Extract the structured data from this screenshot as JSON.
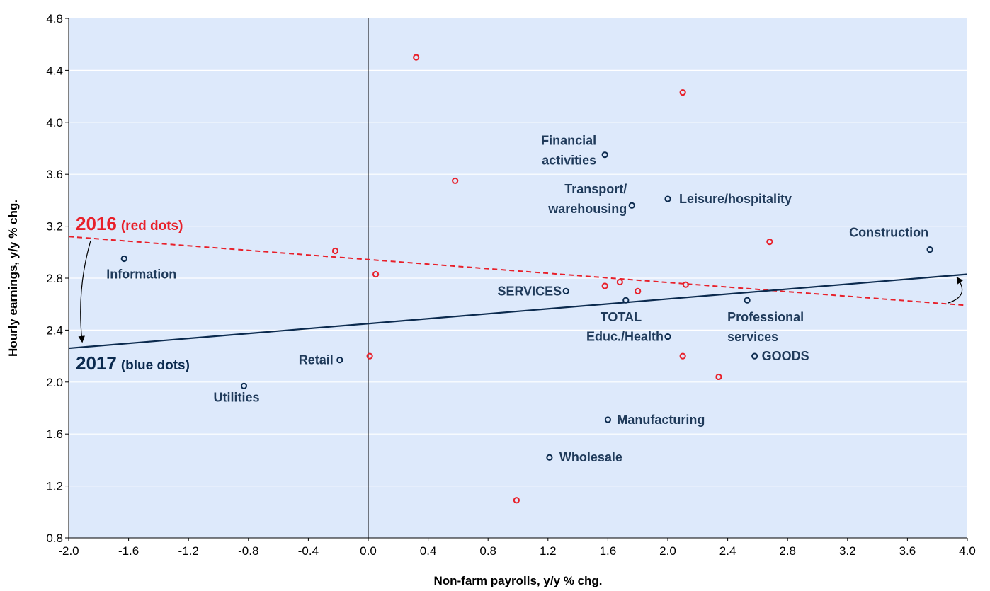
{
  "chart_data": {
    "type": "scatter",
    "xlabel": "Non-farm payrolls, y/y % chg.",
    "ylabel": "Hourly earnings, y/y % chg.",
    "xlim": [
      -2.0,
      4.0
    ],
    "ylim": [
      0.8,
      4.8
    ],
    "x_ticks": [
      "-2.0",
      "-1.6",
      "-1.2",
      "-0.8",
      "-0.4",
      "0.0",
      "0.4",
      "0.8",
      "1.2",
      "1.6",
      "2.0",
      "2.4",
      "2.8",
      "3.2",
      "3.6",
      "4.0"
    ],
    "y_ticks": [
      "0.8",
      "1.2",
      "1.6",
      "2.0",
      "2.4",
      "2.8",
      "3.2",
      "3.6",
      "4.0",
      "4.4",
      "4.8"
    ],
    "grid": "horizontal",
    "colors": {
      "plot_bg": "#dde9fb",
      "red": "#e8202a",
      "blue": "#0b2a4e",
      "label": "#1f3a5a"
    },
    "series": [
      {
        "name": "2016 (red dots)",
        "color": "#e8202a",
        "points": [
          {
            "x": 0.32,
            "y": 4.5
          },
          {
            "x": 2.1,
            "y": 4.23
          },
          {
            "x": 0.58,
            "y": 3.55
          },
          {
            "x": 2.68,
            "y": 3.08
          },
          {
            "x": -0.22,
            "y": 3.01
          },
          {
            "x": 0.05,
            "y": 2.83
          },
          {
            "x": 1.58,
            "y": 2.74
          },
          {
            "x": 1.68,
            "y": 2.77
          },
          {
            "x": 1.8,
            "y": 2.7
          },
          {
            "x": 2.12,
            "y": 2.75
          },
          {
            "x": 0.01,
            "y": 2.2
          },
          {
            "x": 2.1,
            "y": 2.2
          },
          {
            "x": 2.34,
            "y": 2.04
          },
          {
            "x": 0.99,
            "y": 1.09
          }
        ],
        "trend": {
          "x": [
            -2.0,
            4.0
          ],
          "y": [
            3.12,
            2.59
          ]
        }
      },
      {
        "name": "2017 (blue dots)",
        "color": "#0b2a4e",
        "points": [
          {
            "x": -1.63,
            "y": 2.95,
            "label": "Information"
          },
          {
            "x": 1.58,
            "y": 3.75,
            "label": "Financial\nactivities"
          },
          {
            "x": 1.76,
            "y": 3.36,
            "label": "Transport/\nwarehousing"
          },
          {
            "x": 2.0,
            "y": 3.41,
            "label": "Leisure/hospitality"
          },
          {
            "x": 3.75,
            "y": 3.02,
            "label": "Construction"
          },
          {
            "x": 1.32,
            "y": 2.7,
            "label": "SERVICES"
          },
          {
            "x": 1.72,
            "y": 2.63,
            "label": "TOTAL"
          },
          {
            "x": 2.53,
            "y": 2.63,
            "label": "Professional\nservices"
          },
          {
            "x": 2.0,
            "y": 2.35,
            "label": "Educ./Health"
          },
          {
            "x": 2.58,
            "y": 2.2,
            "label": "GOODS"
          },
          {
            "x": -0.19,
            "y": 2.17,
            "label": "Retail"
          },
          {
            "x": -0.83,
            "y": 1.97,
            "label": "Utilities"
          },
          {
            "x": 1.6,
            "y": 1.71,
            "label": "Manufacturing"
          },
          {
            "x": 1.21,
            "y": 1.42,
            "label": "Wholesale"
          }
        ],
        "trend": {
          "x": [
            -2.0,
            4.0
          ],
          "y": [
            2.26,
            2.83
          ]
        }
      }
    ],
    "annotations": [
      {
        "year": "2016",
        "note": "(red dots)",
        "color": "#e8202a"
      },
      {
        "year": "2017",
        "note": "(blue dots)",
        "color": "#0b2a4e"
      }
    ]
  }
}
